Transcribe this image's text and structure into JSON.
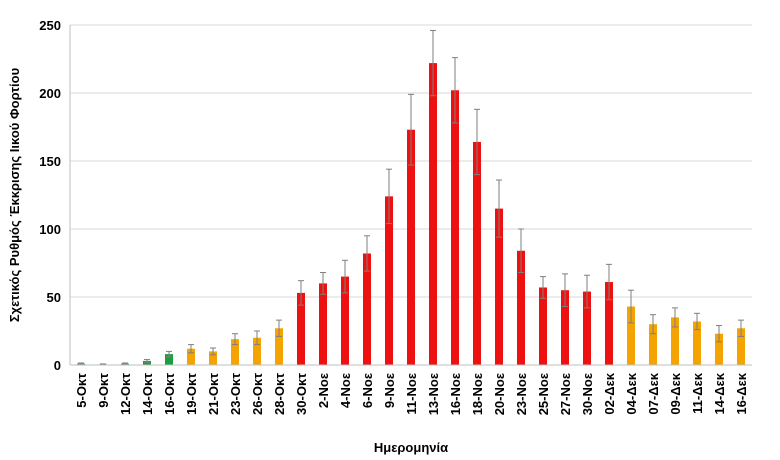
{
  "chart_data": {
    "type": "bar",
    "xlabel": "Ημερομηνία",
    "ylabel": "Σχετικός Ρυθμός Έκκρισης Ιικού Φορτίου",
    "ylim": [
      0,
      250
    ],
    "yticks": [
      0,
      50,
      100,
      150,
      200,
      250
    ],
    "grid": true,
    "colors": {
      "green": "#1a9f3c",
      "orange": "#f5a300",
      "red": "#ee1111"
    },
    "categories": [
      "5-Οκτ",
      "9-Οκτ",
      "12-Οκτ",
      "14-Οκτ",
      "16-Οκτ",
      "19-Οκτ",
      "21-Οκτ",
      "23-Οκτ",
      "26-Οκτ",
      "28-Οκτ",
      "30-Οκτ",
      "2-Νοε",
      "4-Νοε",
      "6-Νοε",
      "9-Νοε",
      "11-Νοε",
      "13-Νοε",
      "16-Νοε",
      "18-Νοε",
      "20-Νοε",
      "23-Νοε",
      "25-Νοε",
      "27-Νοε",
      "30-Νοε",
      "02-Δεκ",
      "04-Δεκ",
      "07-Δεκ",
      "09-Δεκ",
      "11-Δεκ",
      "14-Δεκ",
      "16-Δεκ"
    ],
    "values": [
      1,
      0.5,
      1,
      3,
      8,
      12,
      10,
      19,
      20,
      27,
      53,
      60,
      65,
      82,
      124,
      173,
      222,
      202,
      164,
      115,
      84,
      57,
      55,
      54,
      61,
      43,
      30,
      35,
      32,
      23,
      27
    ],
    "errors": [
      0.5,
      0.3,
      0.5,
      1,
      2,
      3,
      2.5,
      4,
      5,
      6,
      9,
      8,
      12,
      13,
      20,
      26,
      24,
      24,
      24,
      21,
      16,
      8,
      12,
      12,
      13,
      12,
      7,
      7,
      6,
      6,
      6
    ],
    "bar_colors": [
      "green",
      "green",
      "green",
      "green",
      "green",
      "orange",
      "orange",
      "orange",
      "orange",
      "orange",
      "red",
      "red",
      "red",
      "red",
      "red",
      "red",
      "red",
      "red",
      "red",
      "red",
      "red",
      "red",
      "red",
      "red",
      "red",
      "orange",
      "orange",
      "orange",
      "orange",
      "orange",
      "orange"
    ]
  }
}
